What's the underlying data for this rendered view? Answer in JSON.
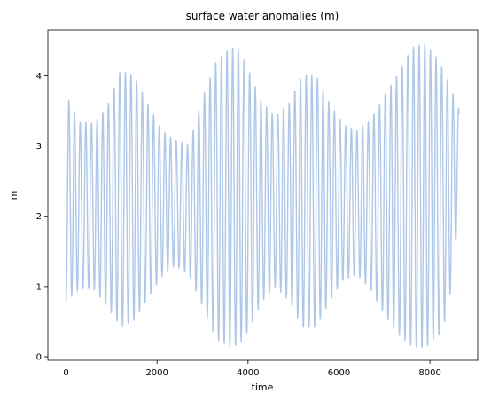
{
  "chart_data": {
    "type": "line",
    "title": "surface water anomalies (m)",
    "xlabel": "time",
    "ylabel": "m",
    "xlim": [
      -400,
      9050
    ],
    "ylim": [
      -0.05,
      4.65
    ],
    "xticks": [
      0,
      2000,
      4000,
      6000,
      8000
    ],
    "xtick_labels": [
      "0",
      "2000",
      "4000",
      "6000",
      "8000"
    ],
    "yticks": [
      0,
      1,
      2,
      3,
      4
    ],
    "ytick_labels": [
      "0",
      "1",
      "2",
      "3",
      "4"
    ],
    "grid": false,
    "legend": "none",
    "series": [
      {
        "color": "#aec7e8",
        "sample_interval": 1,
        "x_start": 0,
        "x_end": 8640,
        "mean": 2.3,
        "tidal_period": 124.2,
        "spring_neap_period": 354,
        "envelope": {
          "x": [
            0,
            300,
            600,
            900,
            1200,
            1500,
            1800,
            2100,
            2400,
            2700,
            3000,
            3300,
            3600,
            3800,
            4000,
            4300,
            4600,
            4900,
            5200,
            5500,
            5800,
            6100,
            6400,
            6700,
            7000,
            7300,
            7600,
            7900,
            8200,
            8400,
            8640
          ],
          "max": [
            3.72,
            3.35,
            3.32,
            3.55,
            4.08,
            4.0,
            3.6,
            3.22,
            3.08,
            3.02,
            3.68,
            4.2,
            4.4,
            4.38,
            4.1,
            3.62,
            3.42,
            3.6,
            4.02,
            4.0,
            3.6,
            3.3,
            3.22,
            3.38,
            3.72,
            4.02,
            4.4,
            4.46,
            4.22,
            3.92,
            3.52
          ],
          "min": [
            0.78,
            0.97,
            0.97,
            0.72,
            0.43,
            0.52,
            0.84,
            1.14,
            1.3,
            1.17,
            0.72,
            0.25,
            0.15,
            0.17,
            0.36,
            0.78,
            1.0,
            0.8,
            0.42,
            0.42,
            0.8,
            1.1,
            1.17,
            0.95,
            0.6,
            0.32,
            0.15,
            0.13,
            0.32,
            0.62,
            2.1
          ]
        }
      }
    ]
  }
}
